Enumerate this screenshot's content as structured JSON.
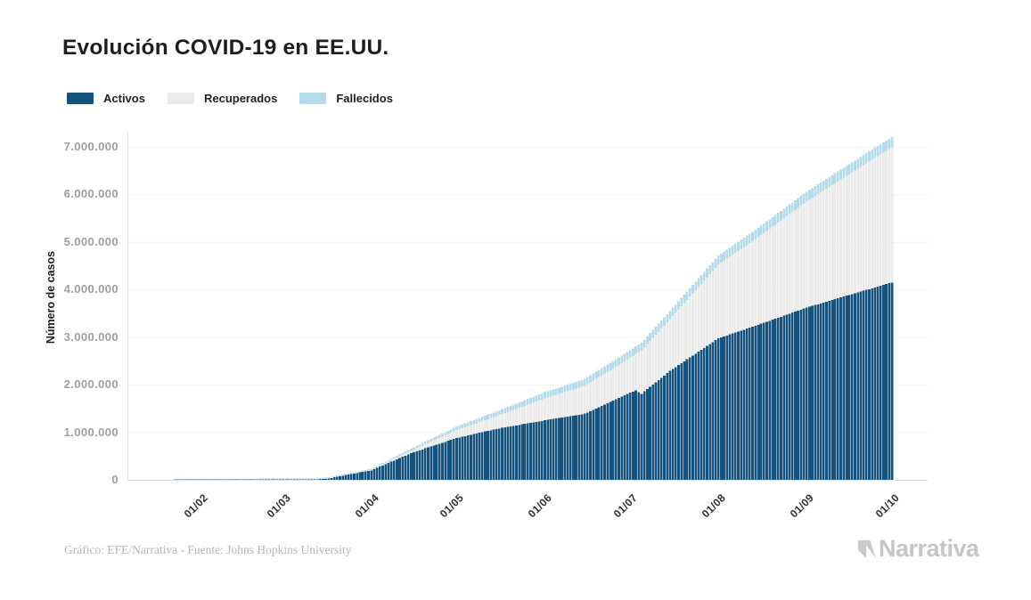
{
  "header": {
    "title": "Evolución COVID-19 en EE.UU."
  },
  "legend": {
    "items": [
      {
        "label": "Activos",
        "color": "#15527C"
      },
      {
        "label": "Recuperados",
        "color": "#EBEBEB"
      },
      {
        "label": "Fallecidos",
        "color": "#B5DBEB"
      }
    ]
  },
  "chart_data": {
    "type": "area",
    "stacked": true,
    "title": "Evolución COVID-19 en EE.UU.",
    "xlabel": "",
    "ylabel": "Número de casos",
    "legend_position": "top-left",
    "grid": "horizontal",
    "ylim": [
      0,
      7330000
    ],
    "y_ticks": [
      0,
      1000000,
      2000000,
      3000000,
      4000000,
      5000000,
      6000000,
      7000000
    ],
    "y_tick_labels": [
      "0",
      "1.000.000",
      "2.000.000",
      "3.000.000",
      "4.000.000",
      "5.000.000",
      "6.000.000",
      "7.000.000"
    ],
    "x_tick_labels": [
      "01/02",
      "01/03",
      "01/04",
      "01/05",
      "01/06",
      "01/07",
      "01/08",
      "01/09",
      "01/10"
    ],
    "x_tick_days": [
      10,
      39,
      70,
      100,
      131,
      161,
      192,
      223,
      253
    ],
    "x_unit": "days since 22/01/2020, daily bars",
    "anchor_days": [
      0,
      30,
      45,
      54,
      61,
      70,
      84,
      100,
      114,
      131,
      145,
      161,
      163,
      165,
      175,
      192,
      206,
      223,
      237,
      253
    ],
    "series": [
      {
        "name": "Activos",
        "color": "#15527C",
        "values": [
          0,
          100,
          2500,
          18000,
          100000,
          200000,
          560000,
          880000,
          1070000,
          1250000,
          1390000,
          1830000,
          1880000,
          1810000,
          2290000,
          2975000,
          3260000,
          3620000,
          3870000,
          4150000
        ]
      },
      {
        "name": "Recuperados",
        "color": "#EBEBEB",
        "values": [
          0,
          0,
          50,
          150,
          1000,
          10000,
          52000,
          165000,
          270000,
          460000,
          585000,
          730000,
          765000,
          910000,
          1090000,
          1550000,
          1840000,
          2230000,
          2520000,
          2840000
        ]
      },
      {
        "name": "Fallecidos",
        "color": "#B5DBEB",
        "values": [
          0,
          0,
          60,
          400,
          2000,
          22000,
          45000,
          75000,
          100000,
          130000,
          145000,
          160000,
          162000,
          164000,
          170000,
          190000,
          200000,
          205000,
          210000,
          215000
        ]
      }
    ],
    "colors": {
      "grid": "#F2F2F2",
      "axis": "#E0E0E0"
    }
  },
  "footer": {
    "credit": "Gráfico: EFE/Narrativa - Fuente: Johns Hopkins University",
    "logo_text": "Narrativa"
  }
}
